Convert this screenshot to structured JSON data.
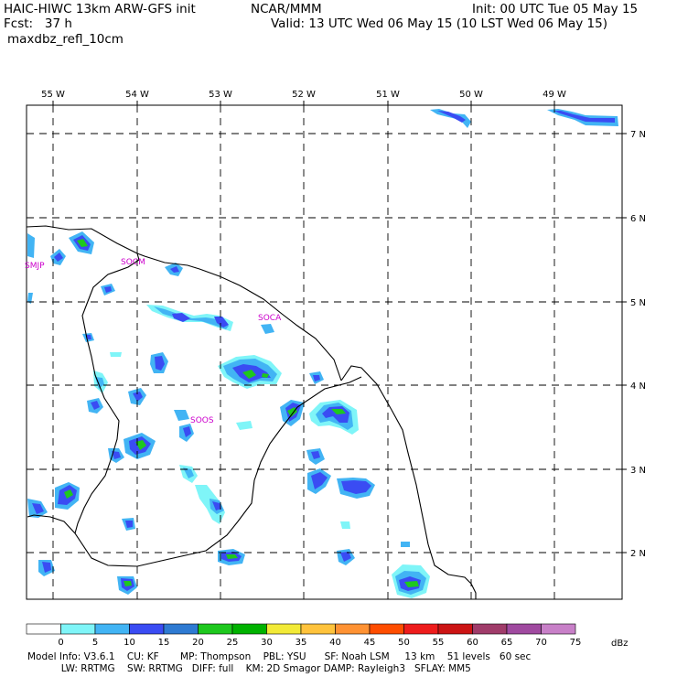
{
  "header": {
    "model_title": "HAIC-HIWC 13km ARW-GFS init",
    "institution": "NCAR/MMM",
    "init_time": "Init: 00 UTC Tue 05 May 15",
    "forecast_hour": "Fcst:   37 h",
    "valid_time": "Valid: 13 UTC Wed 06 May 15 (10 LST Wed 06 May 15)",
    "field_name": "maxdbz_refl_10cm"
  },
  "map": {
    "lon_labels": [
      "55 W",
      "54 W",
      "53 W",
      "52 W",
      "51 W",
      "50 W",
      "49 W"
    ],
    "lat_labels": [
      "7 N",
      "6 N",
      "5 N",
      "4 N",
      "3 N",
      "2 N"
    ],
    "stations": [
      {
        "id": "SMJP"
      },
      {
        "id": "SOCM"
      },
      {
        "id": "SOCA"
      },
      {
        "id": "SOOS"
      }
    ]
  },
  "colorbar": {
    "ticks": [
      "0",
      "5",
      "10",
      "15",
      "20",
      "25",
      "30",
      "35",
      "40",
      "45",
      "50",
      "55",
      "60",
      "65",
      "70",
      "75"
    ],
    "unit": "dBz",
    "colors": [
      "#ffffff",
      "#7ff5f8",
      "#42b4f4",
      "#3a4cf3",
      "#2e7ad2",
      "#1ec81e",
      "#00b200",
      "#f2ea37",
      "#ffc33c",
      "#ff9233",
      "#ff4d00",
      "#ee1c1c",
      "#cc1414",
      "#a03c6a",
      "#a04aa0",
      "#c880c8"
    ]
  },
  "footer": {
    "line1": "Model Info: V3.6.1    CU: KF       MP: Thompson    PBL: YSU      SF: Noah LSM     13 km    51 levels   60 sec",
    "line2": "           LW: RRTMG    SW: RRTMG   DIFF: full    KM: 2D Smagor DAMP: Rayleigh3   SFLAY: MM5"
  }
}
